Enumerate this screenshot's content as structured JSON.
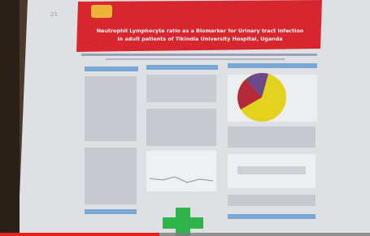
{
  "poster": {
    "title_lines": [
      "Neutrophil Lymphocyte ratio as a Biomarker for Urinary tract infection",
      "in adult patients of Tikindia University Hospital, Uganda"
    ]
  }
}
